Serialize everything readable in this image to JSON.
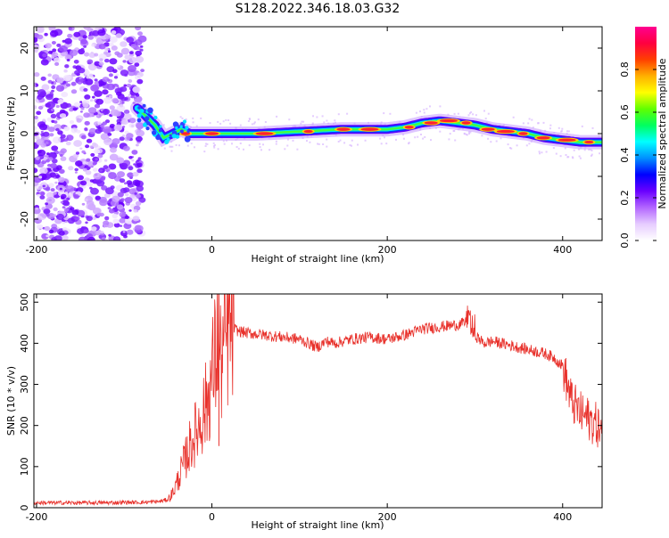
{
  "figure": {
    "title": "S128.2022.346.18.03.G32"
  },
  "chart_data": [
    {
      "type": "heatmap",
      "xlabel": "Height of straight line (km)",
      "ylabel": "Frequency (Hz)",
      "xlim": [
        -203,
        445
      ],
      "ylim": [
        -25,
        25
      ],
      "xticks": [
        -200,
        0,
        200,
        400
      ],
      "yticks": [
        20,
        10,
        0,
        -10,
        -20
      ],
      "colorbar": {
        "label": "Normalized spectral amplitude",
        "range": [
          0,
          1
        ],
        "ticks": [
          0.0,
          0.2,
          0.4,
          0.6,
          0.8
        ],
        "colors": [
          "#ffffff",
          "#e6ccff",
          "#b366ff",
          "#6a00ff",
          "#0000ff",
          "#0090ff",
          "#00ffff",
          "#00ff60",
          "#60ff00",
          "#ffff00",
          "#ffb000",
          "#ff4000",
          "#ff0040",
          "#ff0090"
        ]
      },
      "noise_region_x": [
        -203,
        -85
      ],
      "ridge": {
        "x": [
          -85,
          -75,
          -65,
          -55,
          -45,
          -35,
          -25,
          0,
          50,
          100,
          150,
          180,
          200,
          220,
          240,
          260,
          280,
          300,
          320,
          340,
          360,
          380,
          400,
          420,
          445
        ],
        "frequency": [
          6,
          4,
          2,
          -1,
          0,
          1,
          0,
          0,
          0,
          0.5,
          1,
          1,
          1,
          1.5,
          2.5,
          3,
          2.5,
          2,
          1,
          0.5,
          0,
          -1,
          -1.5,
          -2,
          -2
        ]
      },
      "grid": false
    },
    {
      "type": "line",
      "xlabel": "Height of straight line (km)",
      "ylabel": "SNR (10 * v/v)",
      "xlim": [
        -203,
        445
      ],
      "ylim": [
        0,
        520
      ],
      "xticks": [
        -200,
        0,
        200,
        400
      ],
      "yticks": [
        0,
        100,
        200,
        300,
        400,
        500
      ],
      "series": [
        {
          "color": "#e8302a",
          "x": [
            -203,
            -180,
            -160,
            -140,
            -120,
            -100,
            -80,
            -60,
            -50,
            -45,
            -40,
            -35,
            -30,
            -25,
            -20,
            -15,
            -10,
            -5,
            0,
            5,
            8,
            10,
            15,
            20,
            25,
            30,
            40,
            60,
            80,
            100,
            110,
            120,
            130,
            140,
            160,
            180,
            200,
            220,
            240,
            260,
            280,
            290,
            300,
            310,
            320,
            340,
            360,
            380,
            390,
            400,
            410,
            420,
            430,
            440,
            445
          ],
          "y": [
            12,
            12,
            12,
            12,
            12,
            13,
            13,
            15,
            20,
            35,
            60,
            90,
            120,
            150,
            175,
            200,
            230,
            260,
            320,
            380,
            420,
            350,
            400,
            430,
            435,
            430,
            425,
            420,
            415,
            410,
            400,
            390,
            405,
            400,
            410,
            415,
            410,
            420,
            435,
            440,
            445,
            450,
            420,
            400,
            405,
            395,
            385,
            375,
            365,
            345,
            260,
            230,
            215,
            200,
            180
          ]
        }
      ],
      "spike": {
        "x": 8,
        "peak": 520
      },
      "grid": false
    }
  ]
}
